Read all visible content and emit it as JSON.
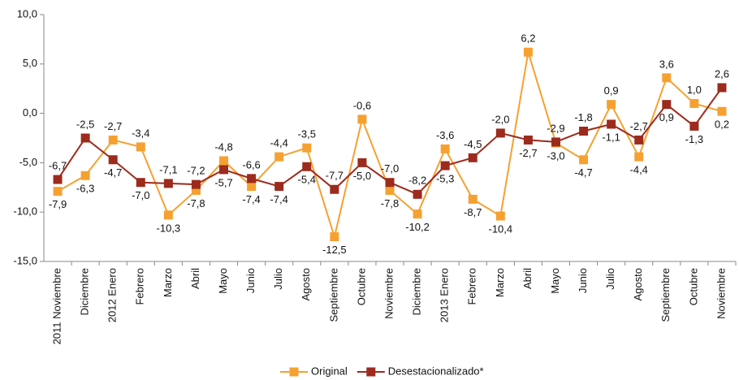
{
  "chart_data": {
    "type": "line",
    "categories": [
      "2011 Noviembre",
      "Diciembre",
      "2012 Enero",
      "Febrero",
      "Marzo",
      "Abril",
      "Mayo",
      "Junio",
      "Julio",
      "Agosto",
      "Septiembre",
      "Octubre",
      "Noviembre",
      "Diciembre",
      "2013 Enero",
      "Febrero",
      "Marzo",
      "Abril",
      "Mayo",
      "Junio",
      "Julio",
      "Agosto",
      "Septiembre",
      "Octubre",
      "Noviembre"
    ],
    "series": [
      {
        "name": "Original",
        "color": "#f5a131",
        "values": [
          -7.9,
          -6.3,
          -2.7,
          -3.4,
          -10.3,
          -7.8,
          -4.8,
          -7.4,
          -4.4,
          -3.5,
          -12.5,
          -0.6,
          -7.8,
          -10.2,
          -3.6,
          -8.7,
          -10.4,
          6.2,
          -3.0,
          -4.7,
          0.9,
          -4.4,
          3.6,
          1.0,
          0.2
        ],
        "value_labels": [
          "-7,9",
          "-6,3",
          "-2,7",
          "-3,4",
          "-10,3",
          "-7,8",
          "-4,8",
          "-7,4",
          "-4,4",
          "-3,5",
          "-12,5",
          "-0,6",
          "-7,8",
          "-10,2",
          "-3,6",
          "-8,7",
          "-10,4",
          "6,2",
          "-3,0",
          "-4,7",
          "0,9",
          "-4,4",
          "3,6",
          "1,0",
          "0,2"
        ]
      },
      {
        "name": "Desestacionalizado*",
        "color": "#9c2b1d",
        "values": [
          -6.7,
          -2.5,
          -4.7,
          -7.0,
          -7.1,
          -7.2,
          -5.7,
          -6.6,
          -7.4,
          -5.4,
          -7.7,
          -5.0,
          -7.0,
          -8.2,
          -5.3,
          -4.5,
          -2.0,
          -2.7,
          -2.9,
          -1.8,
          -1.1,
          -2.7,
          0.9,
          -1.3,
          2.6
        ],
        "value_labels": [
          "-6,7",
          "-2,5",
          "-4,7",
          "-7,0",
          "-7,1",
          "-7,2",
          "-5,7",
          "-6,6",
          "-7,4",
          "-5,4",
          "-7,7",
          "-5,0",
          "-7,0",
          "-8,2",
          "-5,3",
          "-4,5",
          "-2,0",
          "-2,7",
          "-2,9",
          "-1,8",
          "-1,1",
          "-2,7",
          "0,9",
          "-1,3",
          "2,6"
        ]
      }
    ],
    "ylim": [
      -15,
      10
    ],
    "yticks": [
      {
        "value": -15,
        "label": "-15,0"
      },
      {
        "value": -10,
        "label": "-10,0"
      },
      {
        "value": -5,
        "label": "-5,0"
      },
      {
        "value": 0,
        "label": "0,0"
      },
      {
        "value": 5,
        "label": "5,0"
      },
      {
        "value": 10,
        "label": "10,0"
      }
    ],
    "grid": false,
    "legend": "bottom"
  }
}
